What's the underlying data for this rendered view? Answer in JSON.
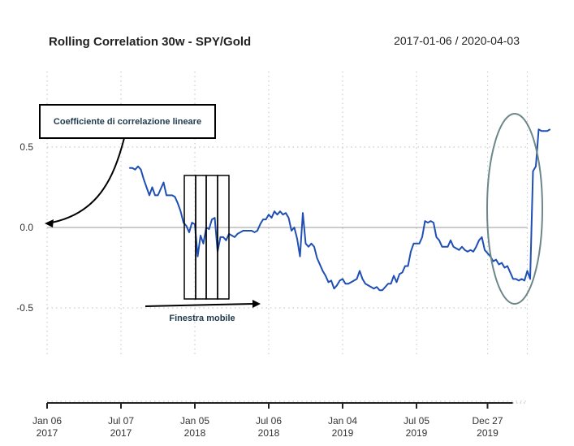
{
  "chart_data": {
    "type": "line",
    "title": "Rolling Correlation 30w - SPY/Gold",
    "date_range": "2017-01-06 / 2020-04-03",
    "ylim": [
      -1.0,
      1.0
    ],
    "y_ticks": [
      {
        "value": 0.5,
        "label": "0.5"
      },
      {
        "value": 0.0,
        "label": "0.0"
      },
      {
        "value": -0.5,
        "label": "-0.5"
      }
    ],
    "x_ticks": [
      {
        "week": 0,
        "line1": "Jan 06",
        "line2": "2017"
      },
      {
        "week": 26,
        "line1": "Jul 07",
        "line2": "2017"
      },
      {
        "week": 52,
        "line1": "Jan 05",
        "line2": "2018"
      },
      {
        "week": 78,
        "line1": "Jul 06",
        "line2": "2018"
      },
      {
        "week": 104,
        "line1": "Jan 04",
        "line2": "2019"
      },
      {
        "week": 130,
        "line1": "Jul 05",
        "line2": "2019"
      },
      {
        "week": 155,
        "line1": "Dec 27",
        "line2": "2019"
      }
    ],
    "x_range": [
      0,
      169
    ],
    "series": [
      {
        "name": "Rolling Correlation",
        "color": "#1f4fb4",
        "start_week": 29,
        "values": [
          0.37,
          0.37,
          0.36,
          0.38,
          0.36,
          0.3,
          0.25,
          0.2,
          0.25,
          0.2,
          0.2,
          0.24,
          0.28,
          0.2,
          0.2,
          0.2,
          0.19,
          0.15,
          0.1,
          0.03,
          0.01,
          -0.03,
          0.03,
          0.02,
          -0.18,
          -0.05,
          -0.1,
          0.0,
          -0.01,
          0.05,
          0.06,
          -0.15,
          -0.06,
          -0.06,
          -0.08,
          -0.04,
          -0.05,
          -0.06,
          -0.04,
          -0.03,
          -0.02,
          -0.02,
          -0.02,
          -0.02,
          -0.03,
          -0.02,
          0.02,
          0.05,
          0.05,
          0.08,
          0.06,
          0.1,
          0.08,
          0.1,
          0.08,
          0.09,
          0.06,
          -0.02,
          0.0,
          -0.07,
          -0.18,
          0.09,
          -0.1,
          -0.12,
          -0.1,
          -0.12,
          -0.19,
          -0.23,
          -0.27,
          -0.3,
          -0.34,
          -0.33,
          -0.38,
          -0.36,
          -0.33,
          -0.32,
          -0.35,
          -0.35,
          -0.34,
          -0.33,
          -0.32,
          -0.27,
          -0.32,
          -0.35,
          -0.36,
          -0.37,
          -0.38,
          -0.37,
          -0.39,
          -0.39,
          -0.37,
          -0.35,
          -0.35,
          -0.3,
          -0.34,
          -0.29,
          -0.28,
          -0.24,
          -0.24,
          -0.15,
          -0.1,
          -0.1,
          -0.1,
          -0.06,
          0.04,
          0.03,
          0.04,
          0.03,
          -0.06,
          -0.08,
          -0.12,
          -0.12,
          -0.12,
          -0.08,
          -0.12,
          -0.13,
          -0.14,
          -0.12,
          -0.14,
          -0.15,
          -0.14,
          -0.15,
          -0.12,
          -0.08,
          -0.06,
          -0.14,
          -0.16,
          -0.18,
          -0.21,
          -0.2,
          -0.23,
          -0.22,
          -0.25,
          -0.24,
          -0.28,
          -0.32,
          -0.32,
          -0.33,
          -0.32,
          -0.33,
          -0.27,
          -0.32,
          0.35,
          0.38,
          0.61,
          0.6,
          0.6,
          0.6,
          0.61
        ]
      }
    ],
    "annotations": [
      {
        "text": "Coefficiente di correlazione lineare",
        "type": "boxed label with arrow to y = 0.0"
      },
      {
        "text": "Finestra mobile",
        "type": "arrow label under rolling window boxes"
      }
    ]
  },
  "colors": {
    "series": "#1f4fb4",
    "ellipse": "#6b8789",
    "axis": "#222222",
    "grid": "#cccccc",
    "zero_line": "#999999"
  }
}
